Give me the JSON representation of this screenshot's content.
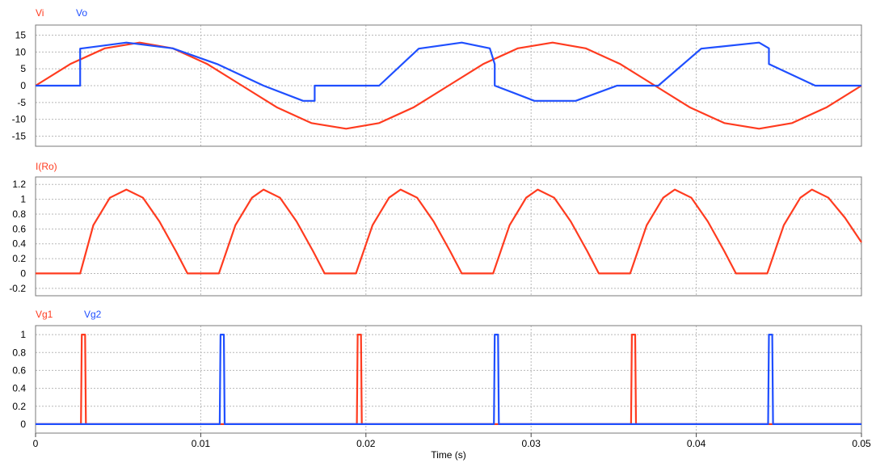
{
  "chart_data": [
    {
      "type": "line",
      "legend": [
        {
          "name": "Vi",
          "color": "#ff3b1f"
        },
        {
          "name": "Vo",
          "color": "#1f4fff"
        }
      ],
      "y_ticks": [
        "15",
        "10",
        "5",
        "0",
        "-5",
        "-10",
        "-15"
      ],
      "ylim": [
        -18,
        18
      ],
      "grid": true,
      "series": [
        {
          "name": "Vi",
          "color": "#ff3b1f",
          "x": [
            0,
            0.0021,
            0.0042,
            0.0063,
            0.0083,
            0.0104,
            0.0125,
            0.0146,
            0.0167,
            0.0188,
            0.0208,
            0.0229,
            0.025,
            0.0271,
            0.0292,
            0.0313,
            0.0333,
            0.0354,
            0.0375,
            0.0396,
            0.0417,
            0.0438,
            0.0458,
            0.0479,
            0.05
          ],
          "y": [
            0,
            6.4,
            11.1,
            12.8,
            11.1,
            6.4,
            0,
            -6.4,
            -11.1,
            -12.8,
            -11.1,
            -6.4,
            0,
            6.4,
            11.1,
            12.8,
            11.1,
            6.4,
            0,
            -6.4,
            -11.1,
            -12.8,
            -11.1,
            -6.4,
            0
          ]
        },
        {
          "name": "Vo",
          "color": "#1f4fff",
          "x": [
            0,
            0.0027,
            0.0027,
            0.0055,
            0.0083,
            0.011,
            0.0138,
            0.0162,
            0.0169,
            0.0169,
            0.0185,
            0.0208,
            0.0232,
            0.0258,
            0.0275,
            0.0278,
            0.0278,
            0.0302,
            0.0327,
            0.0352,
            0.0377,
            0.0403,
            0.0438,
            0.0444,
            0.0444,
            0.0472,
            0.05
          ],
          "y": [
            0,
            0,
            11,
            12.8,
            11.1,
            6.4,
            0,
            -4.5,
            -4.5,
            0,
            0,
            0,
            11,
            12.8,
            11.1,
            6.4,
            0,
            -4.5,
            -4.5,
            0,
            0,
            11,
            12.8,
            11.1,
            6.4,
            0,
            0
          ]
        }
      ]
    },
    {
      "type": "line",
      "legend": [
        {
          "name": "I(Ro)",
          "color": "#ff3b1f"
        }
      ],
      "y_ticks": [
        "1.2",
        "1",
        "0.8",
        "0.6",
        "0.4",
        "0.2",
        "0",
        "-0.2"
      ],
      "ylim": [
        -0.3,
        1.3
      ],
      "grid": true,
      "series": [
        {
          "name": "I(Ro)",
          "color": "#ff3b1f",
          "x": [
            0,
            0.0027,
            0.0035,
            0.0045,
            0.0055,
            0.0065,
            0.0075,
            0.0085,
            0.0092,
            0.0111,
            0.0121,
            0.0131,
            0.0138,
            0.0148,
            0.0158,
            0.0168,
            0.0175,
            0.0194,
            0.0204,
            0.0214,
            0.0221,
            0.0231,
            0.0241,
            0.0251,
            0.0258,
            0.0277,
            0.0287,
            0.0297,
            0.0304,
            0.0314,
            0.0324,
            0.0334,
            0.0341,
            0.036,
            0.037,
            0.038,
            0.0387,
            0.0397,
            0.0407,
            0.0417,
            0.0424,
            0.0443,
            0.0453,
            0.0463,
            0.047,
            0.048,
            0.049,
            0.05
          ],
          "y": [
            0,
            0,
            0.65,
            1.02,
            1.13,
            1.02,
            0.7,
            0.3,
            0,
            0,
            0.65,
            1.02,
            1.13,
            1.02,
            0.7,
            0.3,
            0,
            0,
            0.65,
            1.02,
            1.13,
            1.02,
            0.7,
            0.3,
            0,
            0,
            0.65,
            1.02,
            1.13,
            1.02,
            0.7,
            0.3,
            0,
            0,
            0.65,
            1.02,
            1.13,
            1.02,
            0.7,
            0.3,
            0,
            0,
            0.65,
            1.02,
            1.13,
            1.02,
            0.75,
            0.42
          ]
        }
      ]
    },
    {
      "type": "line",
      "legend": [
        {
          "name": "Vg1",
          "color": "#ff3b1f"
        },
        {
          "name": "Vg2",
          "color": "#1f4fff"
        }
      ],
      "y_ticks": [
        "1",
        "0.8",
        "0.6",
        "0.4",
        "0.2",
        "0"
      ],
      "ylim": [
        -0.1,
        1.1
      ],
      "grid": true,
      "series": [
        {
          "name": "Vg1",
          "color": "#ff3b1f",
          "pulses": [
            [
              0.0028,
              0.003
            ],
            [
              0.0195,
              0.0197
            ],
            [
              0.0361,
              0.0363
            ]
          ]
        },
        {
          "name": "Vg2",
          "color": "#1f4fff",
          "pulses": [
            [
              0.0112,
              0.0114
            ],
            [
              0.0278,
              0.028
            ],
            [
              0.0444,
              0.0446
            ]
          ]
        }
      ]
    }
  ],
  "x_axis": {
    "label": "Time (s)",
    "ticks": [
      {
        "value": 0,
        "label": "0"
      },
      {
        "value": 0.01,
        "label": "0.01"
      },
      {
        "value": 0.02,
        "label": "0.02"
      },
      {
        "value": 0.03,
        "label": "0.03"
      },
      {
        "value": 0.04,
        "label": "0.04"
      },
      {
        "value": 0.05,
        "label": "0.05"
      }
    ],
    "xlim": [
      0,
      0.05
    ]
  }
}
